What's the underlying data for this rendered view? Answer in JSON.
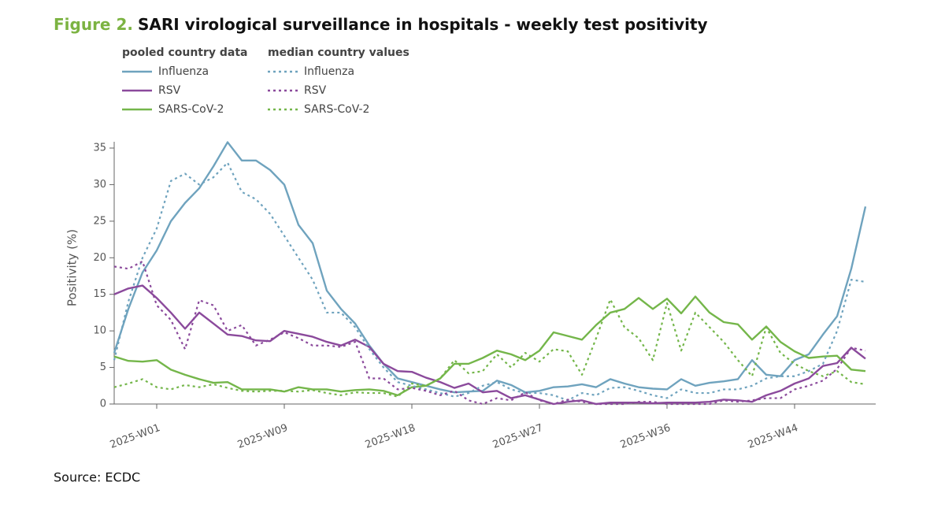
{
  "chart_data": {
    "type": "line",
    "title_prefix": "Figure 2.",
    "title": "SARI virological surveillance in hospitals - weekly test positivity",
    "source": "Source: ECDC",
    "ylabel": "Positivity (%)",
    "legend_titles": [
      "pooled country data",
      "median country values"
    ],
    "categories": [
      null,
      null,
      null,
      "2025-W01",
      null,
      null,
      null,
      null,
      null,
      null,
      null,
      null,
      "2025-W09",
      null,
      null,
      null,
      null,
      null,
      null,
      null,
      null,
      "2025-W18",
      null,
      null,
      null,
      null,
      null,
      null,
      null,
      null,
      "2025-W27",
      null,
      null,
      null,
      null,
      null,
      null,
      null,
      null,
      "2025-W36",
      null,
      null,
      null,
      null,
      null,
      null,
      null,
      null,
      "2025-W44",
      null,
      null,
      null,
      null,
      null
    ],
    "ylim": [
      0,
      35
    ],
    "yticks": [
      0,
      5,
      10,
      15,
      20,
      25,
      30,
      35
    ],
    "series": [
      {
        "name": "Influenza",
        "color": "#6fa3be",
        "style": "solid",
        "legend_group": 0,
        "values": [
          7,
          13,
          18,
          21,
          25,
          27.5,
          29.5,
          32.5,
          35.8,
          33.3,
          33.3,
          32,
          30,
          24.5,
          22,
          15.5,
          13,
          11,
          8,
          5.5,
          3.5,
          3,
          2.5,
          2,
          1.6,
          1.7,
          1.8,
          3.2,
          2.6,
          1.6,
          1.8,
          2.3,
          2.4,
          2.7,
          2.3,
          3.4,
          2.8,
          2.3,
          2.1,
          2,
          3.4,
          2.5,
          2.9,
          3.1,
          3.4,
          6,
          4,
          3.8,
          6,
          6.8,
          9.5,
          12,
          18.5,
          27
        ]
      },
      {
        "name": "RSV",
        "color": "#8b4a9c",
        "style": "solid",
        "legend_group": 0,
        "values": [
          15,
          15.8,
          16.2,
          14.5,
          12.5,
          10.3,
          12.5,
          11,
          9.5,
          9.3,
          8.7,
          8.6,
          10,
          9.6,
          9.2,
          8.5,
          8,
          8.8,
          7.8,
          5.5,
          4.5,
          4.4,
          3.6,
          3,
          2.2,
          2.8,
          1.6,
          1.8,
          0.8,
          1.2,
          0.6,
          0,
          0.3,
          0.5,
          0,
          0.2,
          0.2,
          0.2,
          0.1,
          0.2,
          0.2,
          0.2,
          0.3,
          0.6,
          0.5,
          0.3,
          1.2,
          1.8,
          2.8,
          3.5,
          5.2,
          5.6,
          7.7,
          6.2
        ]
      },
      {
        "name": "SARS-CoV-2",
        "color": "#74b64a",
        "style": "solid",
        "legend_group": 0,
        "values": [
          6.5,
          5.9,
          5.8,
          6,
          4.7,
          4,
          3.4,
          2.9,
          3,
          2,
          2,
          2,
          1.7,
          2.3,
          2,
          2,
          1.7,
          1.9,
          2,
          1.8,
          1.2,
          2.3,
          2.5,
          3.5,
          5.5,
          5.5,
          6.3,
          7.3,
          6.8,
          6,
          7.3,
          9.8,
          9.3,
          8.8,
          10.8,
          12.5,
          13,
          14.5,
          13,
          14.4,
          12.4,
          14.7,
          12.5,
          11.2,
          10.9,
          8.8,
          10.6,
          8.5,
          7.2,
          6.3,
          6.5,
          6.6,
          4.7,
          4.5
        ]
      },
      {
        "name": "Influenza",
        "color": "#6fa3be",
        "style": "dotted",
        "legend_group": 1,
        "values": [
          6,
          14,
          20,
          24,
          30.5,
          31.5,
          30,
          31,
          33,
          29,
          28,
          26,
          23,
          20,
          17,
          12.5,
          12.5,
          10.5,
          7.5,
          5,
          3,
          2.5,
          2,
          1.5,
          1,
          1.5,
          2.5,
          3,
          2,
          1.5,
          1.5,
          1.2,
          0.5,
          1.5,
          1.2,
          2.2,
          2.3,
          1.8,
          1.2,
          0.8,
          2,
          1.5,
          1.5,
          2,
          2,
          2.5,
          3.5,
          3.8,
          3.8,
          4.5,
          5.5,
          10,
          17,
          16.7
        ]
      },
      {
        "name": "RSV",
        "color": "#8b4a9c",
        "style": "dotted",
        "legend_group": 1,
        "values": [
          18.8,
          18.5,
          19.5,
          13.5,
          11.5,
          7.5,
          14.2,
          13.5,
          10,
          10.8,
          8,
          8.8,
          9.8,
          9,
          8,
          8,
          7.8,
          8.5,
          3.5,
          3.5,
          2,
          2.2,
          1.8,
          1.2,
          1.8,
          0.5,
          0,
          0.8,
          0.5,
          1.6,
          0.5,
          0,
          0.6,
          0.3,
          0,
          0,
          0,
          0.3,
          0.3,
          0,
          0,
          0,
          0,
          0.5,
          0.3,
          0.5,
          0.8,
          0.8,
          2,
          2.5,
          3.2,
          4.8,
          7.7,
          7.3
        ]
      },
      {
        "name": "SARS-CoV-2",
        "color": "#74b64a",
        "style": "dotted",
        "legend_group": 1,
        "values": [
          2.3,
          2.8,
          3.4,
          2.3,
          2,
          2.6,
          2.3,
          2.7,
          2.2,
          1.8,
          1.7,
          1.8,
          1.8,
          1.7,
          1.9,
          1.5,
          1.2,
          1.6,
          1.5,
          1.5,
          1,
          2.8,
          2.5,
          3.5,
          6,
          4.2,
          4.5,
          6.8,
          5,
          7,
          5.8,
          7.5,
          7.2,
          4,
          9,
          14.3,
          10.5,
          9,
          6,
          13.8,
          7.3,
          12.5,
          10.5,
          8.5,
          6,
          3.8,
          10.5,
          7,
          5.5,
          4.5,
          3.8,
          4.5,
          3,
          2.7
        ]
      }
    ]
  }
}
